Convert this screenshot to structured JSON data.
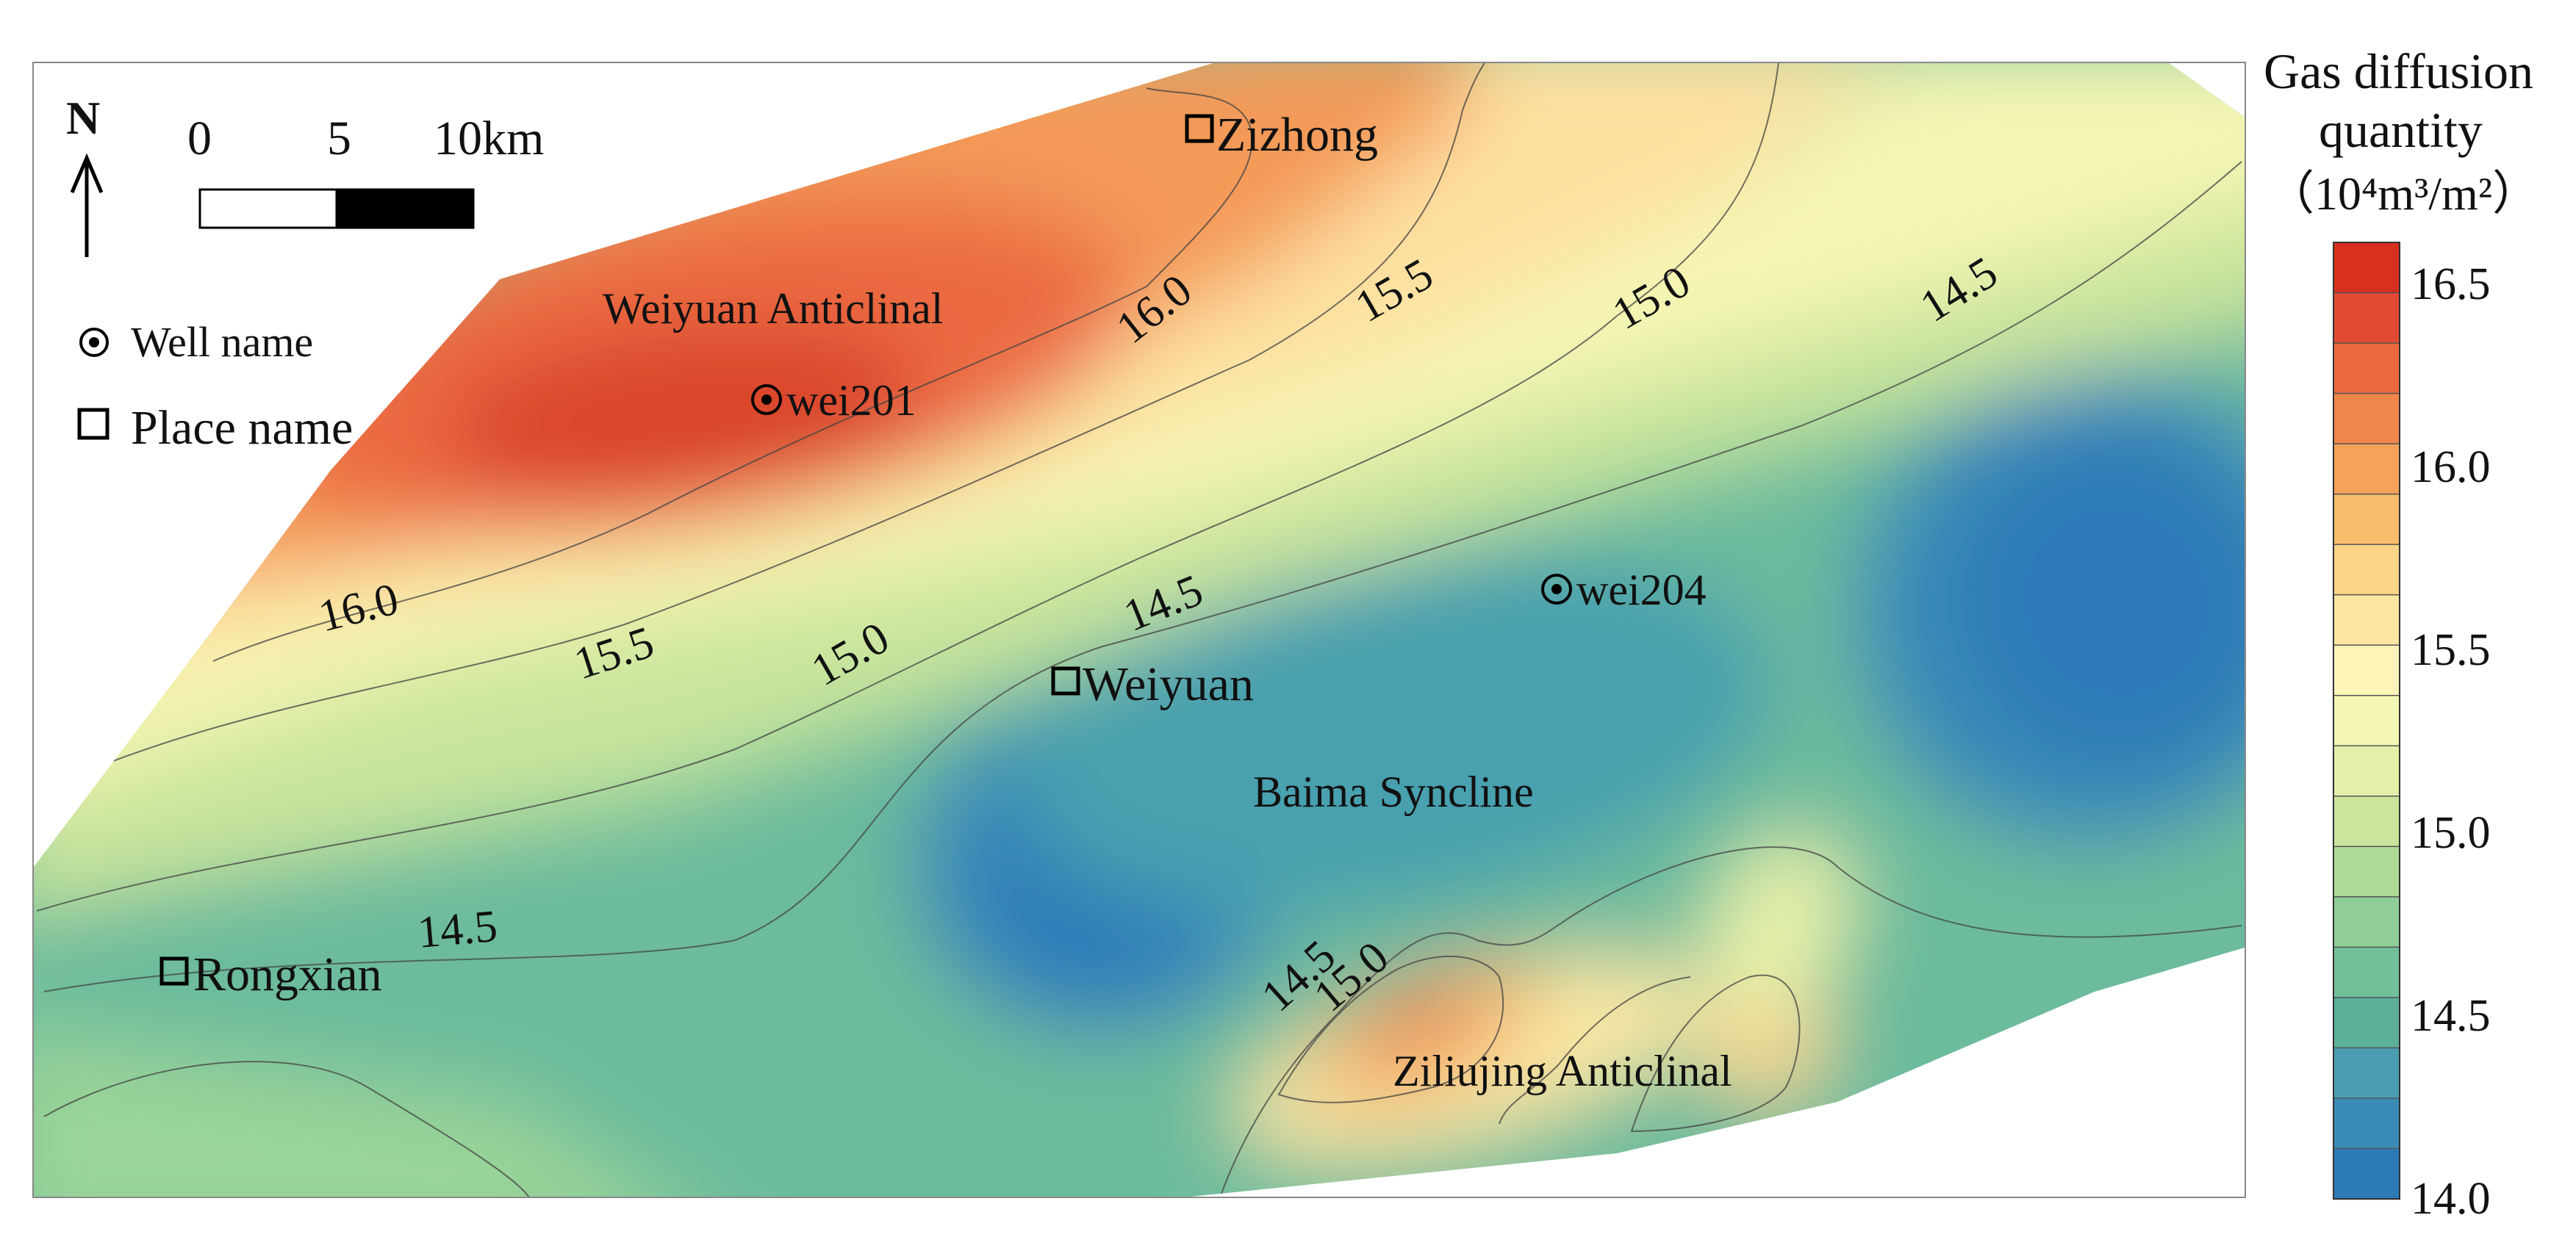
{
  "map": {
    "places": [
      {
        "name": "Zizhong"
      },
      {
        "name": "Weiyuan"
      },
      {
        "name": "Rongxian"
      }
    ],
    "wells": [
      {
        "name": "wei201"
      },
      {
        "name": "wei204"
      }
    ],
    "structures": [
      {
        "name": "Weiyuan Anticlinal"
      },
      {
        "name": "Baima Syncline"
      },
      {
        "name": "Ziliujing Anticlinal"
      }
    ],
    "contour_labels": [
      "16.0",
      "15.5",
      "15.0",
      "14.5",
      "14.5",
      "15.0",
      "15.5",
      "16.0",
      "14.5",
      "14.5",
      "15.0"
    ]
  },
  "legend": {
    "north": "N",
    "scale_labels": [
      "0",
      "5",
      "10km"
    ],
    "well_label": "Well name",
    "place_label": "Place name"
  },
  "colorbar": {
    "title_line1": "Gas diffusion",
    "title_line2": "quantity",
    "title_line3": "（10⁴m³/m²）",
    "ticks": [
      "16.5",
      "16.0",
      "15.5",
      "15.0",
      "14.5",
      "14.0"
    ],
    "colors": [
      "#d7301f",
      "#e34a33",
      "#ec6a3f",
      "#f0874a",
      "#f5a35a",
      "#f8bd6c",
      "#fbd485",
      "#fde7a0",
      "#fdf5b8",
      "#f4f7b4",
      "#e3f0a7",
      "#cbe69c",
      "#aedb98",
      "#8fce98",
      "#72c09a",
      "#5cb09a",
      "#4a9db0",
      "#3a8bb6",
      "#2c7bb6"
    ]
  }
}
